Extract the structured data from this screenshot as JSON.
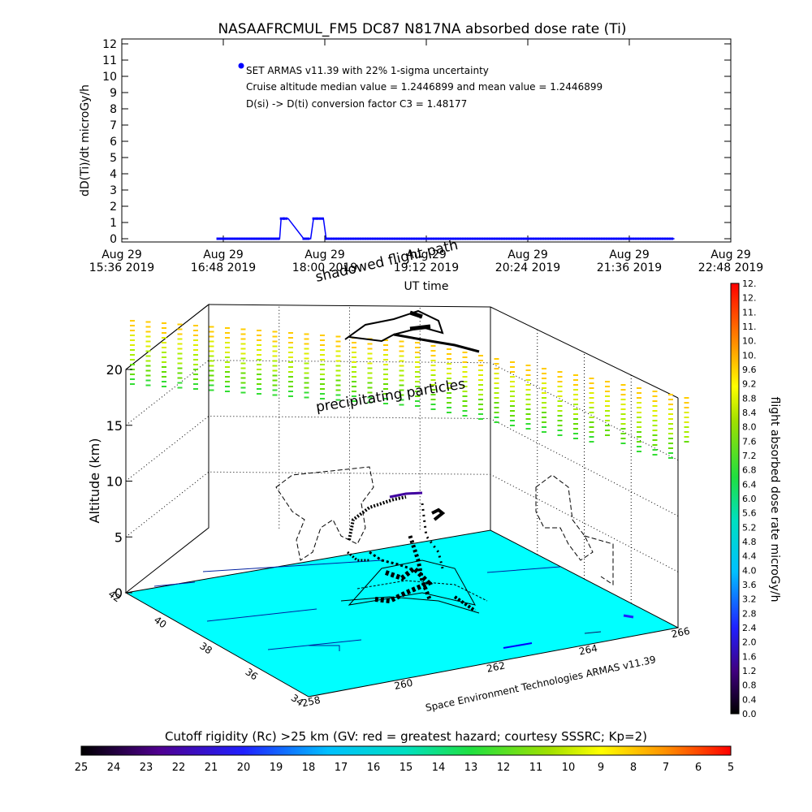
{
  "title": "NASAAFRCMUL_FM5 DC87 N817NA absorbed dose rate (Ti)",
  "top_panel": {
    "ylabel": "dD(Ti)/dt microGy/h",
    "xlabel": "UT time",
    "yticks": [
      "0",
      "1",
      "2",
      "3",
      "4",
      "5",
      "6",
      "7",
      "8",
      "9",
      "10",
      "11",
      "12"
    ],
    "xticks": [
      {
        "line1": "Aug 29",
        "line2": "15:36 2019"
      },
      {
        "line1": "Aug 29",
        "line2": "16:48 2019"
      },
      {
        "line1": "Aug 29",
        "line2": "18:00 2019"
      },
      {
        "line1": "Aug 29",
        "line2": "19:12 2019"
      },
      {
        "line1": "Aug 29",
        "line2": "20:24 2019"
      },
      {
        "line1": "Aug 29",
        "line2": "21:36 2019"
      },
      {
        "line1": "Aug 29",
        "line2": "22:48 2019"
      }
    ],
    "annotations": [
      "SET ARMAS v11.39 with 22% 1-sigma uncertainty",
      "Cruise altitude median value = 1.2446899 and mean value = 1.2446899",
      "D(si) -> D(ti) conversion factor C3 = 1.48177"
    ],
    "series_color": "#0000ff"
  },
  "chart_data": [
    {
      "type": "line",
      "title": "NASAAFRCMUL_FM5 DC87 N817NA absorbed dose rate (Ti)",
      "xlabel": "UT time",
      "ylabel": "dD(Ti)/dt microGy/h",
      "ylim": [
        0,
        12
      ],
      "xlim": [
        "2019-08-29 15:36",
        "2019-08-29 22:48"
      ],
      "grid": true,
      "series": [
        {
          "name": "SET ARMAS v11.39",
          "x": [
            "2019-08-29 16:44",
            "2019-08-29 17:28",
            "2019-08-29 17:29",
            "2019-08-29 17:31",
            "2019-08-29 17:34",
            "2019-08-29 17:45",
            "2019-08-29 17:50",
            "2019-08-29 17:52",
            "2019-08-29 17:55",
            "2019-08-29 17:59",
            "2019-08-29 18:01",
            "2019-08-29 22:08"
          ],
          "y": [
            0,
            0,
            1.24,
            1.24,
            1.24,
            0,
            0,
            1.24,
            1.24,
            1.24,
            0,
            0
          ]
        }
      ]
    },
    {
      "type": "scatter",
      "title": "",
      "xlabel": "",
      "ylabel": "Altitude (km)",
      "zlim": [
        0,
        20
      ],
      "zticks": [
        "0",
        "5",
        "10",
        "15",
        "20"
      ],
      "longitude_ticks": [
        "258",
        "260",
        "262",
        "264",
        "266"
      ],
      "latitude_ticks": [
        "34",
        "36",
        "38",
        "40",
        "42"
      ],
      "annotations": [
        "shadowed flight path",
        "precipitating particles",
        "Space Environment Technologies ARMAS v11.39"
      ],
      "colorbar_right": {
        "label": "flight absorbed dose rate microGy/h",
        "ticks": [
          "0.0",
          "0.4",
          "0.8",
          "1.2",
          "1.6",
          "2.0",
          "2.4",
          "2.8",
          "3.2",
          "3.6",
          "4.0",
          "4.4",
          "4.8",
          "5.2",
          "5.6",
          "6.0",
          "6.4",
          "6.8",
          "7.2",
          "7.6",
          "8.0",
          "8.4",
          "8.8",
          "9.2",
          "9.6",
          "10.",
          "10.",
          "11.",
          "11.",
          "12.",
          "12."
        ]
      },
      "colorbar_bottom": {
        "label": "Cutoff rigidity (Rc) >25 km (GV: red = greatest hazard; courtesy SSSRC; Kp=2)",
        "ticks": [
          "25",
          "24",
          "23",
          "22",
          "21",
          "20",
          "19",
          "18",
          "17",
          "16",
          "15",
          "14",
          "13",
          "12",
          "11",
          "10",
          "9",
          "8",
          "7",
          "6",
          "5"
        ]
      },
      "floor_color": "#00ffff"
    }
  ]
}
